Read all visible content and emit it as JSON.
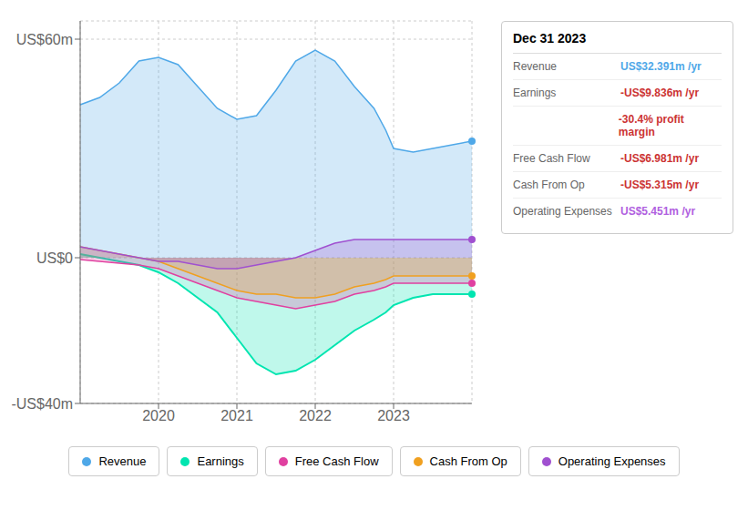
{
  "chart_data": {
    "type": "area",
    "x": [
      2019.0,
      2019.25,
      2019.5,
      2019.75,
      2020.0,
      2020.25,
      2020.5,
      2020.75,
      2021.0,
      2021.25,
      2021.5,
      2021.75,
      2022.0,
      2022.25,
      2022.5,
      2022.75,
      2022.9,
      2023.0,
      2023.25,
      2023.5,
      2023.75,
      2024.0
    ],
    "series": [
      {
        "name": "Revenue",
        "color": "#4fa8e8",
        "values": [
          42,
          44,
          48,
          54,
          55,
          53,
          47,
          41,
          38,
          39,
          46,
          54,
          57,
          54,
          47,
          41,
          35,
          30,
          29,
          30,
          31,
          32
        ]
      },
      {
        "name": "Earnings",
        "color": "#00e5b0",
        "values": [
          1,
          0,
          -1,
          -2,
          -4,
          -7,
          -11,
          -15,
          -22,
          -29,
          -32,
          -31,
          -28,
          -24,
          -20,
          -17,
          -15,
          -13,
          -11,
          -10,
          -10,
          -10
        ]
      },
      {
        "name": "Free Cash Flow",
        "color": "#e040a0",
        "values": [
          -0.5,
          -1,
          -1.5,
          -2,
          -3,
          -5,
          -7,
          -9,
          -11,
          -12,
          -13,
          -14,
          -13,
          -12,
          -10,
          -9,
          -8,
          -7,
          -7,
          -7,
          -7,
          -7
        ]
      },
      {
        "name": "Cash From Op",
        "color": "#f0a020",
        "values": [
          3,
          2,
          1,
          0,
          -1,
          -3,
          -5,
          -7,
          -9,
          -10,
          -10,
          -11,
          -11,
          -10,
          -8,
          -7,
          -6,
          -5,
          -5,
          -5,
          -5,
          -5
        ]
      },
      {
        "name": "Operating Expenses",
        "color": "#a050d0",
        "values": [
          3,
          2,
          1,
          0,
          -1,
          -1,
          -2,
          -3,
          -3,
          -2,
          -1,
          0,
          2,
          4,
          5,
          5,
          5,
          5,
          5,
          5,
          5,
          5
        ]
      }
    ],
    "xlim": [
      2019.0,
      2024.0
    ],
    "xticks": [
      2020,
      2021,
      2022,
      2023
    ],
    "ylim": [
      -40,
      65
    ],
    "yticks": [
      {
        "value": -40,
        "label": "-US$40m"
      },
      {
        "value": 0,
        "label": "US$0"
      },
      {
        "value": 60,
        "label": "US$60m"
      }
    ],
    "grid": true,
    "annotations": {
      "title": "Dec 31 2023",
      "rows": [
        {
          "label": "Revenue",
          "text": "US$32.391m /yr",
          "color": "#4fa8e8"
        },
        {
          "label": "Earnings",
          "text": "-US$9.836m /yr",
          "color": "#cc3333"
        },
        {
          "text": "-30.4% profit margin",
          "color": "#cc3333"
        },
        {
          "label": "Free Cash Flow",
          "text": "-US$6.981m /yr",
          "color": "#cc3333"
        },
        {
          "label": "Cash From Op",
          "text": "-US$5.315m /yr",
          "color": "#cc3333"
        },
        {
          "label": "Operating Expenses",
          "text": "US$5.451m /yr",
          "color": "#b060e0"
        }
      ]
    }
  }
}
